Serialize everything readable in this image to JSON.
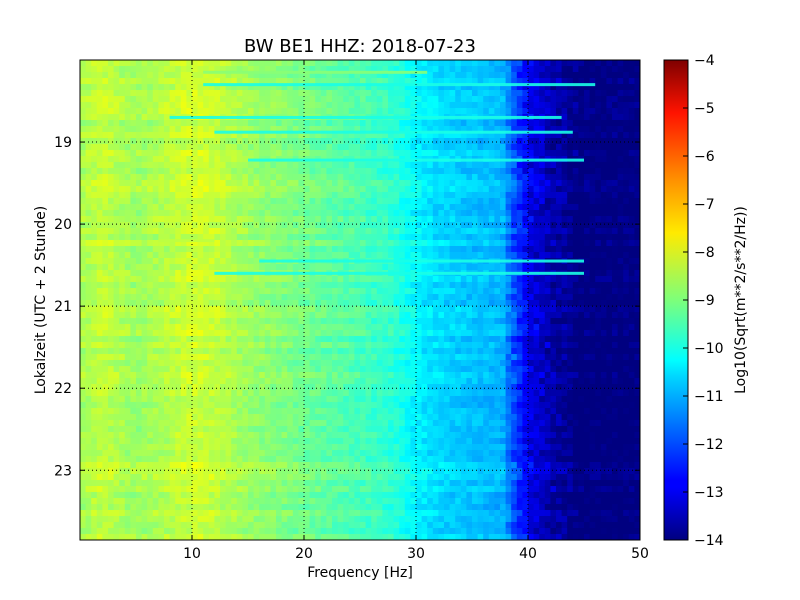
{
  "chart_data": {
    "type": "heatmap",
    "title": "BW BE1 HHZ: 2018-07-23",
    "xlabel": "Frequency [Hz]",
    "ylabel": "Lokalzeit (UTC + 2 Stunde)",
    "colorbar_label": "Log10(Sqrt(m**2/s**2/Hz))",
    "xlim": [
      0,
      50
    ],
    "xticks": [
      10,
      20,
      30,
      40,
      50
    ],
    "xtick_labels": [
      "10",
      "20",
      "30",
      "40",
      "50"
    ],
    "ylim": [
      18.0,
      23.85
    ],
    "yticks": [
      19,
      20,
      21,
      22,
      23
    ],
    "ytick_labels": [
      "19",
      "20",
      "21",
      "22",
      "23"
    ],
    "y_inverted": true,
    "grid": true,
    "colormap": "jet",
    "clim": [
      -14,
      -4
    ],
    "colorbar_ticks": [
      -4,
      -5,
      -6,
      -7,
      -8,
      -9,
      -10,
      -11,
      -12,
      -13,
      -14
    ],
    "colorbar_tick_labels": [
      "−4",
      "−5",
      "−6",
      "−7",
      "−8",
      "−9",
      "−10",
      "−11",
      "−12",
      "−13",
      "−14"
    ],
    "spectral_profile": {
      "frequency_hz": [
        0,
        2,
        5,
        8,
        10,
        12,
        15,
        20,
        25,
        28,
        30,
        32,
        35,
        38,
        40,
        42,
        44,
        45,
        50
      ],
      "log10_amplitude": [
        -8.6,
        -8.3,
        -8.7,
        -8.4,
        -8.2,
        -8.3,
        -8.7,
        -9.1,
        -9.5,
        -9.8,
        -10.3,
        -10.6,
        -10.8,
        -11.0,
        -12.6,
        -13.2,
        -13.6,
        -14.0,
        -14.0
      ]
    },
    "horizontal_lines": [
      {
        "time_h": 18.15,
        "fmin": 11,
        "fmax": 31,
        "value": -8.9
      },
      {
        "time_h": 18.3,
        "fmin": 11,
        "fmax": 46,
        "value": -10.0
      },
      {
        "time_h": 18.7,
        "fmin": 8,
        "fmax": 43,
        "value": -10.0
      },
      {
        "time_h": 18.88,
        "fmin": 12,
        "fmax": 44,
        "value": -10.0
      },
      {
        "time_h": 19.22,
        "fmin": 15,
        "fmax": 45,
        "value": -10.0
      },
      {
        "time_h": 20.2,
        "fmin": 7,
        "fmax": 12,
        "value": -8.4
      },
      {
        "time_h": 20.45,
        "fmin": 16,
        "fmax": 45,
        "value": -10.0
      },
      {
        "time_h": 20.6,
        "fmin": 12,
        "fmax": 45,
        "value": -10.0
      }
    ]
  }
}
